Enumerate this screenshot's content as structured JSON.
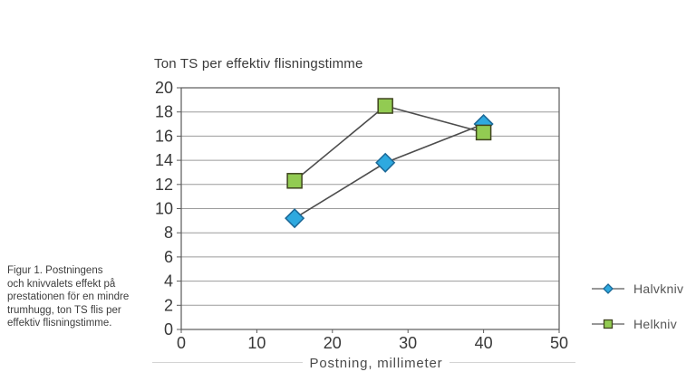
{
  "figure": {
    "caption_lines": [
      "Figur 1. Postningens",
      "och knivvalets effekt på",
      "prestationen för en mindre",
      "trumhugg, ton TS flis per",
      "effektiv flisningstimme."
    ]
  },
  "chart_data": {
    "type": "line",
    "title": "Ton TS per effektiv flisningstimme",
    "xlabel": "Postning, millimeter",
    "ylabel": "",
    "xlim": [
      0,
      50
    ],
    "ylim": [
      0,
      20
    ],
    "xticks": [
      0,
      10,
      20,
      30,
      40,
      50
    ],
    "yticks": [
      0,
      2,
      4,
      6,
      8,
      10,
      12,
      14,
      16,
      18,
      20
    ],
    "grid": "horizontal-only",
    "legend_position": "right",
    "x": [
      15,
      27,
      40
    ],
    "series": [
      {
        "name": "Halvkniv",
        "marker": "diamond",
        "marker_color": "#2ea9df",
        "marker_border": "#1a6796",
        "values": [
          9.2,
          13.8,
          17.0
        ]
      },
      {
        "name": "Helkniv",
        "marker": "square",
        "marker_color": "#92cb52",
        "marker_border": "#3f441f",
        "values": [
          12.3,
          18.5,
          16.3
        ]
      }
    ],
    "line_color": "#4d4d4d",
    "colors": {
      "grid": "#9b9b9b",
      "axis": "#5a5a5a",
      "tick_text": "#383838"
    }
  }
}
